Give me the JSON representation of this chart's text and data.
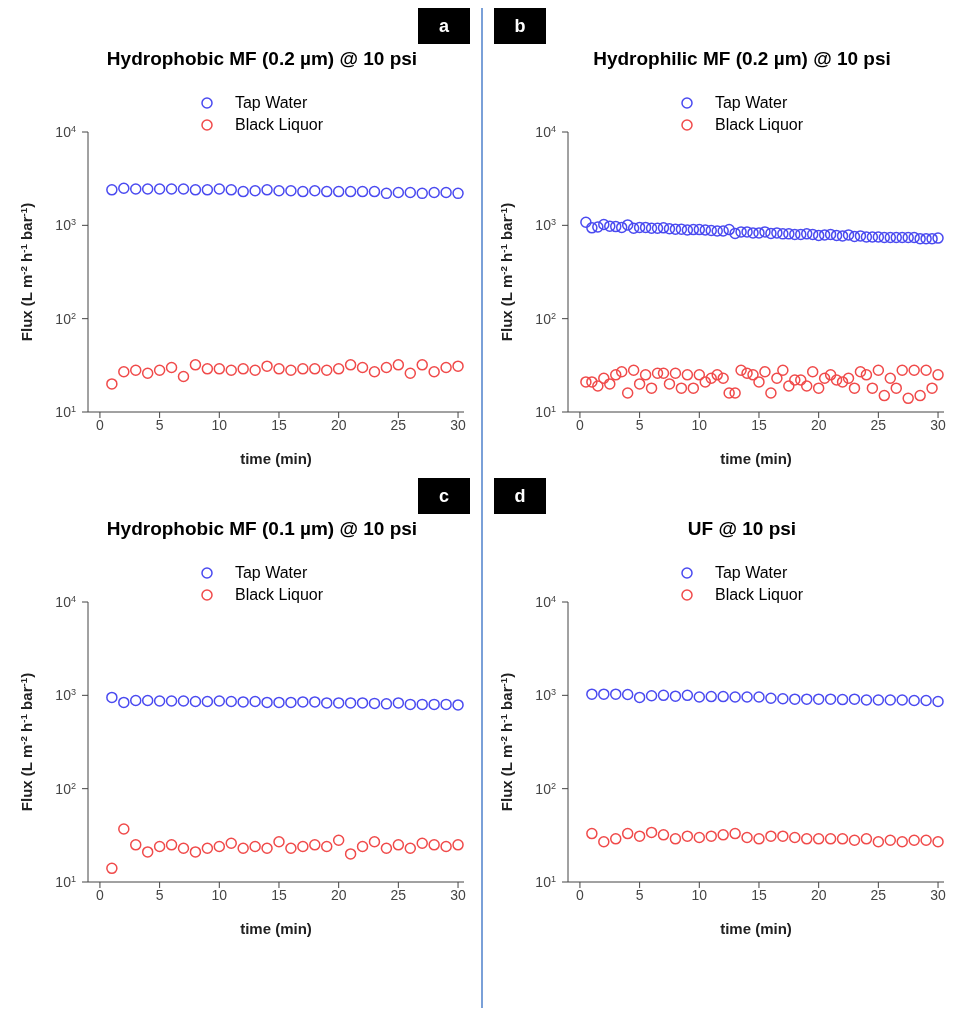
{
  "chart_data": [
    {
      "type": "scatter",
      "title": "Hydrophobic MF (0.2 µm) @ 10 psi",
      "annotations": [
        "a"
      ],
      "xlabel": "time (min)",
      "ylabel": "Flux (L m$^{-2}$ h$^{-1}$ bar$^{-1}$)",
      "log": "y",
      "marker": "circle",
      "legend": "top",
      "grid": false,
      "xlim": [
        -1,
        30.5
      ],
      "xticks": [
        0,
        5,
        10,
        15,
        20,
        25,
        30
      ],
      "ylim": [
        10,
        10000
      ],
      "yticks": [
        {
          "value": 10,
          "label": "10$^{1}$"
        },
        {
          "value": 100,
          "label": "10$^{2}$"
        },
        {
          "value": 1000,
          "label": "10$^{3}$"
        },
        {
          "value": 10000,
          "label": "10$^{4}$"
        }
      ],
      "x": [
        1,
        2,
        3,
        4,
        5,
        6,
        7,
        8,
        9,
        10,
        11,
        12,
        13,
        14,
        15,
        16,
        17,
        18,
        19,
        20,
        21,
        22,
        23,
        24,
        25,
        26,
        27,
        28,
        29,
        30
      ],
      "series": [
        {
          "name": "Tap Water",
          "color": "#4a4af0",
          "values": [
            2400,
            2500,
            2450,
            2450,
            2450,
            2450,
            2450,
            2400,
            2400,
            2450,
            2400,
            2300,
            2350,
            2400,
            2350,
            2350,
            2300,
            2350,
            2300,
            2300,
            2300,
            2300,
            2300,
            2200,
            2250,
            2250,
            2200,
            2250,
            2250,
            2200
          ]
        },
        {
          "name": "Black Liquor",
          "color": "#f04a4a",
          "values": [
            20,
            27,
            28,
            26,
            28,
            30,
            24,
            32,
            29,
            29,
            28,
            29,
            28,
            31,
            29,
            28,
            29,
            29,
            28,
            29,
            32,
            30,
            27,
            30,
            32,
            26,
            32,
            27,
            30,
            31
          ]
        }
      ]
    },
    {
      "type": "scatter",
      "title": "Hydrophilic MF (0.2 µm) @ 10 psi",
      "annotations": [
        "b"
      ],
      "xlabel": "time (min)",
      "ylabel": "Flux (L m$^{-2}$ h$^{-1}$ bar$^{-1}$)",
      "log": "y",
      "marker": "circle",
      "legend": "top",
      "grid": false,
      "xlim": [
        -1,
        30.5
      ],
      "xticks": [
        0,
        5,
        10,
        15,
        20,
        25,
        30
      ],
      "ylim": [
        10,
        10000
      ],
      "yticks": [
        {
          "value": 10,
          "label": "10$^{1}$"
        },
        {
          "value": 100,
          "label": "10$^{2}$"
        },
        {
          "value": 1000,
          "label": "10$^{3}$"
        },
        {
          "value": 10000,
          "label": "10$^{4}$"
        }
      ],
      "x": [
        0.5,
        1,
        1.5,
        2,
        2.5,
        3,
        3.5,
        4,
        4.5,
        5,
        5.5,
        6,
        6.5,
        7,
        7.5,
        8,
        8.5,
        9,
        9.5,
        10,
        10.5,
        11,
        11.5,
        12,
        12.5,
        13,
        13.5,
        14,
        14.5,
        15,
        15.5,
        16,
        16.5,
        17,
        17.5,
        18,
        18.5,
        19,
        19.5,
        20,
        20.5,
        21,
        21.5,
        22,
        22.5,
        23,
        23.5,
        24,
        24.5,
        25,
        25.5,
        26,
        26.5,
        27,
        27.5,
        28,
        28.5,
        29,
        29.5,
        30
      ],
      "series": [
        {
          "name": "Tap Water",
          "color": "#4a4af0",
          "values": [
            1080,
            940,
            960,
            1020,
            980,
            970,
            950,
            1010,
            930,
            950,
            950,
            930,
            930,
            940,
            920,
            910,
            910,
            890,
            900,
            900,
            890,
            880,
            870,
            870,
            900,
            820,
            850,
            850,
            830,
            830,
            850,
            820,
            830,
            810,
            810,
            800,
            800,
            810,
            800,
            780,
            790,
            800,
            780,
            770,
            790,
            760,
            770,
            750,
            750,
            750,
            740,
            740,
            740,
            740,
            740,
            740,
            720,
            720,
            720,
            730
          ]
        },
        {
          "name": "Black Liquor",
          "color": "#f04a4a",
          "values": [
            21,
            21,
            19,
            23,
            20,
            25,
            27,
            16,
            28,
            20,
            25,
            18,
            26,
            26,
            20,
            26,
            18,
            25,
            18,
            25,
            21,
            23,
            25,
            23,
            16,
            16,
            28,
            26,
            25,
            21,
            27,
            16,
            23,
            28,
            19,
            22,
            22,
            19,
            27,
            18,
            23,
            25,
            22,
            21,
            23,
            18,
            27,
            25,
            18,
            28,
            15,
            23,
            18,
            28,
            14,
            28,
            15,
            28,
            18,
            25
          ]
        }
      ]
    },
    {
      "type": "scatter",
      "title": "Hydrophobic MF (0.1 µm) @ 10 psi",
      "annotations": [
        "c"
      ],
      "xlabel": "time (min)",
      "ylabel": "Flux (L m$^{-2}$ h$^{-1}$ bar$^{-1}$)",
      "log": "y",
      "marker": "circle",
      "legend": "top",
      "grid": false,
      "xlim": [
        -1,
        30.5
      ],
      "xticks": [
        0,
        5,
        10,
        15,
        20,
        25,
        30
      ],
      "ylim": [
        10,
        10000
      ],
      "yticks": [
        {
          "value": 10,
          "label": "10$^{1}$"
        },
        {
          "value": 100,
          "label": "10$^{2}$"
        },
        {
          "value": 1000,
          "label": "10$^{3}$"
        },
        {
          "value": 10000,
          "label": "10$^{4}$"
        }
      ],
      "x": [
        1,
        2,
        3,
        4,
        5,
        6,
        7,
        8,
        9,
        10,
        11,
        12,
        13,
        14,
        15,
        16,
        17,
        18,
        19,
        20,
        21,
        22,
        23,
        24,
        25,
        26,
        27,
        28,
        29,
        30
      ],
      "series": [
        {
          "name": "Tap Water",
          "color": "#4a4af0",
          "values": [
            950,
            840,
            880,
            880,
            870,
            870,
            870,
            860,
            860,
            870,
            860,
            850,
            860,
            840,
            840,
            840,
            850,
            850,
            830,
            830,
            830,
            830,
            820,
            810,
            830,
            800,
            800,
            800,
            800,
            790
          ]
        },
        {
          "name": "Black Liquor",
          "color": "#f04a4a",
          "values": [
            14,
            37,
            25,
            21,
            24,
            25,
            23,
            21,
            23,
            24,
            26,
            23,
            24,
            23,
            27,
            23,
            24,
            25,
            24,
            28,
            20,
            24,
            27,
            23,
            25,
            23,
            26,
            25,
            24,
            25
          ]
        }
      ]
    },
    {
      "type": "scatter",
      "title": "UF @ 10 psi",
      "annotations": [
        "d"
      ],
      "xlabel": "time (min)",
      "ylabel": "Flux (L m$^{-2}$ h$^{-1}$ bar$^{-1}$)",
      "log": "y",
      "marker": "circle",
      "legend": "top",
      "grid": false,
      "xlim": [
        -1,
        30.5
      ],
      "xticks": [
        0,
        5,
        10,
        15,
        20,
        25,
        30
      ],
      "ylim": [
        10,
        10000
      ],
      "yticks": [
        {
          "value": 10,
          "label": "10$^{1}$"
        },
        {
          "value": 100,
          "label": "10$^{2}$"
        },
        {
          "value": 1000,
          "label": "10$^{3}$"
        },
        {
          "value": 10000,
          "label": "10$^{4}$"
        }
      ],
      "x": [
        1,
        2,
        3,
        4,
        5,
        6,
        7,
        8,
        9,
        10,
        11,
        12,
        13,
        14,
        15,
        16,
        17,
        18,
        19,
        20,
        21,
        22,
        23,
        24,
        25,
        26,
        27,
        28,
        29,
        30
      ],
      "series": [
        {
          "name": "Tap Water",
          "color": "#4a4af0",
          "values": [
            1030,
            1030,
            1030,
            1020,
            950,
            990,
            1000,
            980,
            1000,
            960,
            970,
            970,
            960,
            960,
            960,
            930,
            920,
            910,
            910,
            910,
            910,
            900,
            910,
            890,
            890,
            890,
            890,
            880,
            880,
            860
          ]
        },
        {
          "name": "Black Liquor",
          "color": "#f04a4a",
          "values": [
            33,
            27,
            29,
            33,
            31,
            34,
            32,
            29,
            31,
            30,
            31,
            32,
            33,
            30,
            29,
            31,
            31,
            30,
            29,
            29,
            29,
            29,
            28,
            29,
            27,
            28,
            27,
            28,
            28,
            27
          ]
        }
      ]
    }
  ]
}
